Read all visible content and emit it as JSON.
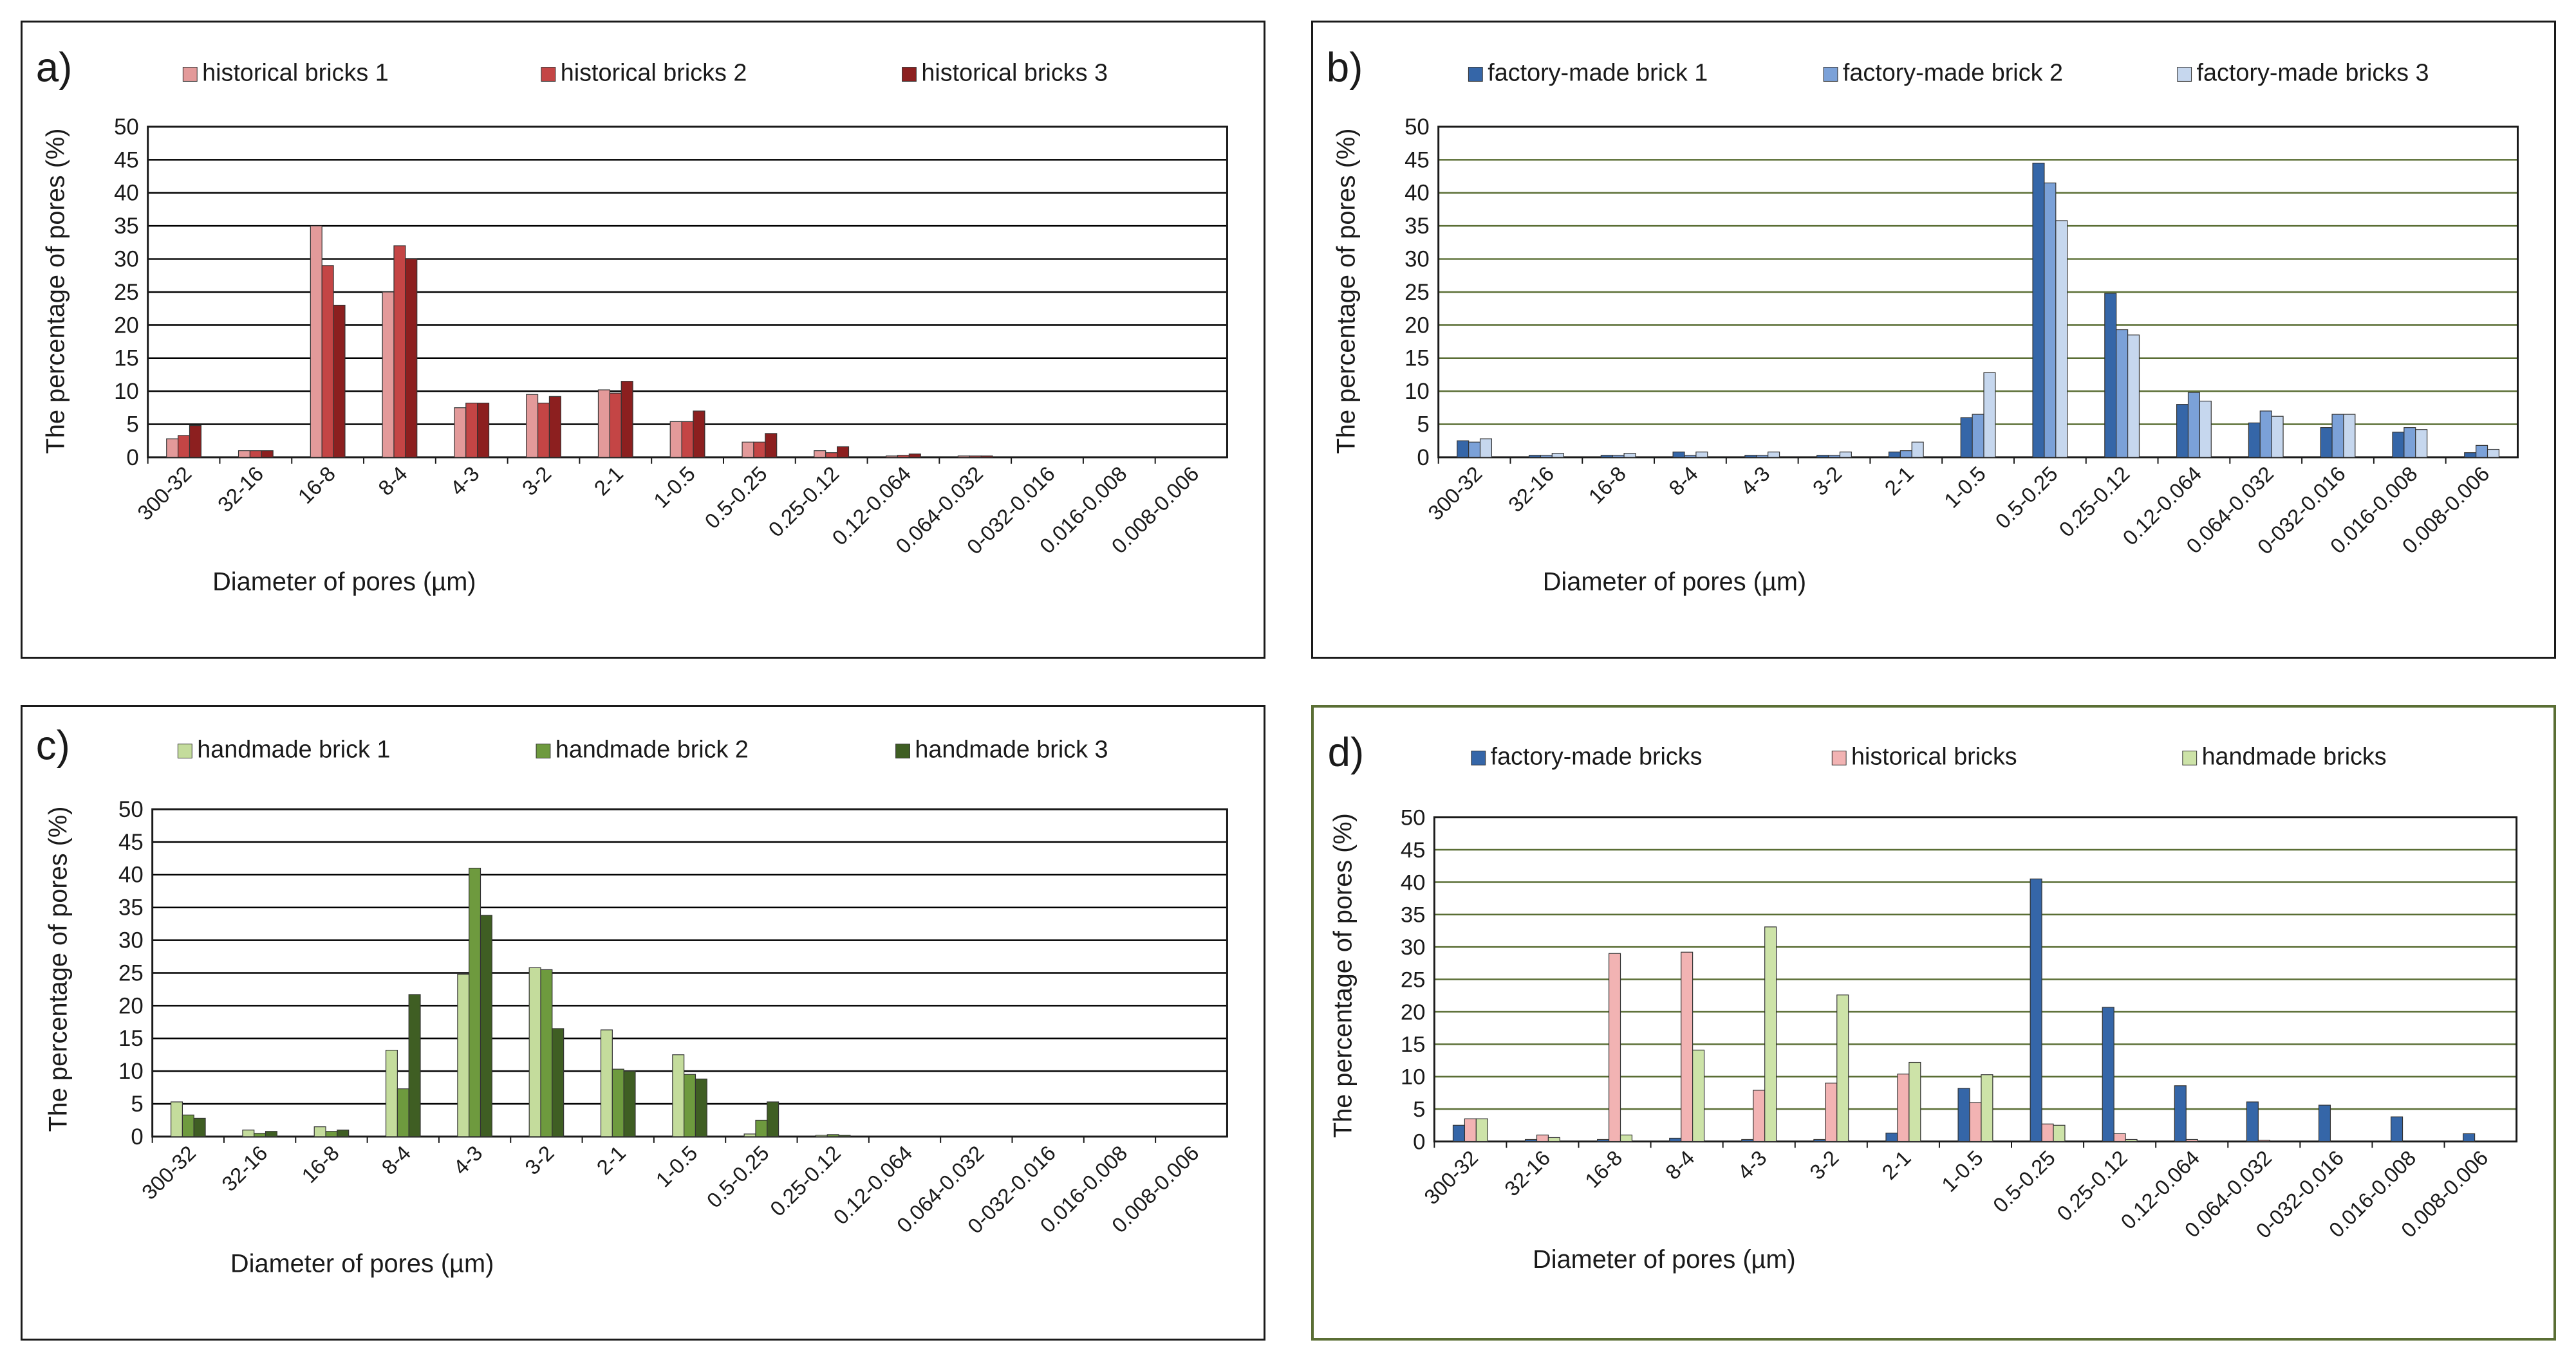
{
  "chart_data": [
    {
      "panel": "a)",
      "type": "bar",
      "grid_color": "#000000",
      "ylabel": "The percentage of pores (%)",
      "xlabel": "Diameter of pores (µm)",
      "ylim": [
        0,
        50
      ],
      "yticks": [
        "0",
        "5",
        "10",
        "15",
        "20",
        "25",
        "30",
        "35",
        "40",
        "45",
        "50"
      ],
      "categories": [
        "300-32",
        "32-16",
        "16-8",
        "8-4",
        "4-3",
        "3-2",
        "2-1",
        "1-0.5",
        "0.5-0.25",
        "0.25-0.12",
        "0.12-0.064",
        "0.064-0.032",
        "0-032-0.016",
        "0.016-0.008",
        "0.008-0.006"
      ],
      "series": [
        {
          "name": "historical bricks 1",
          "color": "#e39a9a",
          "values": [
            2.8,
            1.0,
            35,
            25,
            7.5,
            9.5,
            10.2,
            5.4,
            2.3,
            1.0,
            0.2,
            0.2,
            0,
            0,
            0
          ]
        },
        {
          "name": "historical bricks 2",
          "color": "#c44545",
          "values": [
            3.3,
            1.0,
            29,
            32,
            8.2,
            8.2,
            9.7,
            5.4,
            2.3,
            0.7,
            0.3,
            0.2,
            0,
            0,
            0
          ]
        },
        {
          "name": "historical bricks 3",
          "color": "#8c1f1f",
          "values": [
            4.8,
            1.0,
            23,
            30,
            8.2,
            9.2,
            11.5,
            7.0,
            3.6,
            1.6,
            0.5,
            0.2,
            0,
            0,
            0
          ]
        }
      ]
    },
    {
      "panel": "b)",
      "type": "bar",
      "grid_color": "#5a6e34",
      "ylabel": "The percentage of pores (%)",
      "xlabel": "Diameter of pores (µm)",
      "ylim": [
        0,
        50
      ],
      "yticks": [
        "0",
        "5",
        "10",
        "15",
        "20",
        "25",
        "30",
        "35",
        "40",
        "45",
        "50"
      ],
      "categories": [
        "300-32",
        "32-16",
        "16-8",
        "8-4",
        "4-3",
        "3-2",
        "2-1",
        "1-0.5",
        "0.5-0.25",
        "0.25-0.12",
        "0.12-0.064",
        "0.064-0.032",
        "0-032-0.016",
        "0.016-0.008",
        "0.008-0.006"
      ],
      "series": [
        {
          "name": "factory-made brick 1",
          "color": "#3566a8",
          "values": [
            2.5,
            0.3,
            0.3,
            0.8,
            0.3,
            0.3,
            0.8,
            6.0,
            44.5,
            24.8,
            8.0,
            5.2,
            4.5,
            3.8,
            0.7
          ]
        },
        {
          "name": "factory-made brick 2",
          "color": "#7ba1d8",
          "values": [
            2.3,
            0.3,
            0.3,
            0.3,
            0.3,
            0.3,
            1.0,
            6.5,
            41.5,
            19.3,
            9.8,
            7.0,
            6.5,
            4.5,
            1.8
          ]
        },
        {
          "name": "factory-made bricks 3",
          "color": "#c6d7ee",
          "values": [
            2.8,
            0.6,
            0.6,
            0.8,
            0.8,
            0.8,
            2.3,
            12.8,
            35.8,
            18.5,
            8.5,
            6.2,
            6.5,
            4.2,
            1.2
          ]
        }
      ]
    },
    {
      "panel": "c)",
      "type": "bar",
      "grid_color": "#000000",
      "ylabel": "The percentage of pores (%)",
      "xlabel": "Diameter of pores (µm)",
      "ylim": [
        0,
        50
      ],
      "yticks": [
        "0",
        "5",
        "10",
        "15",
        "20",
        "25",
        "30",
        "35",
        "40",
        "45",
        "50"
      ],
      "categories": [
        "300-32",
        "32-16",
        "16-8",
        "8-4",
        "4-3",
        "3-2",
        "2-1",
        "1-0.5",
        "0.5-0.25",
        "0.25-0.12",
        "0.12-0.064",
        "0.064-0.032",
        "0-032-0.016",
        "0.016-0.008",
        "0.008-0.006"
      ],
      "series": [
        {
          "name": "handmade brick 1",
          "color": "#c4dc9c",
          "values": [
            5.3,
            1.0,
            1.5,
            13.2,
            24.8,
            25.8,
            16.3,
            12.5,
            0.4,
            0.2,
            0,
            0,
            0,
            0,
            0
          ]
        },
        {
          "name": "handmade brick 2",
          "color": "#6e9a3e",
          "values": [
            3.3,
            0.5,
            0.8,
            7.3,
            41.0,
            25.5,
            10.3,
            9.5,
            2.5,
            0.3,
            0,
            0,
            0,
            0,
            0
          ]
        },
        {
          "name": "handmade brick 3",
          "color": "#3f5e23",
          "values": [
            2.8,
            0.8,
            1.0,
            21.7,
            33.8,
            16.5,
            10.0,
            8.8,
            5.3,
            0.2,
            0,
            0,
            0,
            0,
            0
          ]
        }
      ]
    },
    {
      "panel": "d)",
      "type": "bar",
      "grid_color": "#5a6e34",
      "ylabel": "The percentage of pores (%)",
      "xlabel": "Diameter of pores (µm)",
      "ylim": [
        0,
        50
      ],
      "yticks": [
        "0",
        "5",
        "10",
        "15",
        "20",
        "25",
        "30",
        "35",
        "40",
        "45",
        "50"
      ],
      "categories": [
        "300-32",
        "32-16",
        "16-8",
        "8-4",
        "4-3",
        "3-2",
        "2-1",
        "1-0.5",
        "0.5-0.25",
        "0.25-0.12",
        "0.12-0.064",
        "0.064-0.032",
        "0-032-0.016",
        "0.016-0.008",
        "0.008-0.006"
      ],
      "series": [
        {
          "name": "factory-made bricks",
          "color": "#3566a8",
          "values": [
            2.5,
            0.3,
            0.3,
            0.5,
            0.3,
            0.3,
            1.3,
            8.2,
            40.5,
            20.7,
            8.6,
            6.1,
            5.6,
            3.8,
            1.2
          ]
        },
        {
          "name": "historical bricks",
          "color": "#f2b3b3",
          "values": [
            3.5,
            1.0,
            29.0,
            29.2,
            7.9,
            9.0,
            10.4,
            6.0,
            2.7,
            1.2,
            0.3,
            0.2,
            0,
            0,
            0
          ]
        },
        {
          "name": "handmade bricks",
          "color": "#cde3a8",
          "values": [
            3.5,
            0.6,
            1.0,
            14.1,
            33.1,
            22.6,
            12.2,
            10.3,
            2.5,
            0.3,
            0,
            0,
            0,
            0,
            0
          ]
        }
      ]
    }
  ]
}
